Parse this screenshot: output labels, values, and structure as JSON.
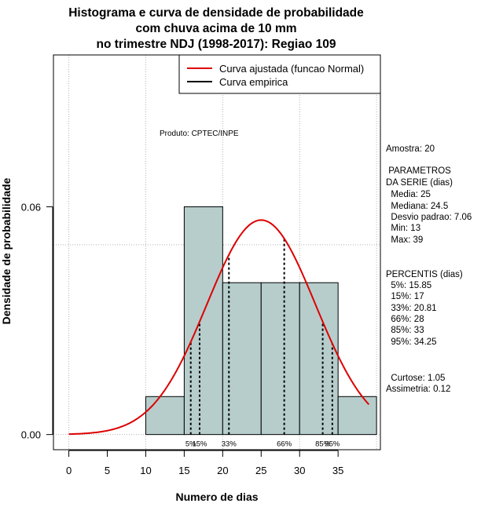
{
  "chart_data": {
    "type": "histogram",
    "title": [
      "Histograma e curva de densidade de probabilidade",
      "com chuva acima de 10 mm",
      "no trimestre NDJ (1998-2017): Regiao 109"
    ],
    "xlabel": "Numero de dias",
    "ylabel": "Densidade de probabilidade",
    "xlim": [
      -2,
      40.5
    ],
    "ylim": [
      -0.004,
      0.1
    ],
    "x_ticks": [
      "0",
      "5",
      "10",
      "15",
      "20",
      "25",
      "30",
      "35"
    ],
    "x_tick_values": [
      0,
      5,
      10,
      15,
      20,
      25,
      30,
      35
    ],
    "y_ticks": [
      "0.00",
      "0.06"
    ],
    "y_tick_values": [
      0,
      0.06
    ],
    "grid_x": [
      0,
      10,
      20,
      30,
      40
    ],
    "grid_y": [
      0,
      0.05,
      0.1
    ],
    "bins": [
      {
        "from": 10,
        "to": 15,
        "density": 0.01
      },
      {
        "from": 15,
        "to": 20,
        "density": 0.06
      },
      {
        "from": 20,
        "to": 25,
        "density": 0.04
      },
      {
        "from": 25,
        "to": 30,
        "density": 0.04
      },
      {
        "from": 30,
        "to": 35,
        "density": 0.04
      },
      {
        "from": 35,
        "to": 40,
        "density": 0.01
      }
    ],
    "normal_curve": {
      "name": "Curva ajustada (funcao Normal)",
      "mean": 25,
      "sd": 7.06,
      "x_from": 0,
      "x_to": 39,
      "color": "#dd0000"
    },
    "empirical_curve": {
      "name": "Curva empirica",
      "color": "#000000"
    },
    "percentiles": [
      {
        "label": "5%",
        "x": 15.85
      },
      {
        "label": "15%",
        "x": 17
      },
      {
        "label": "33%",
        "x": 20.81
      },
      {
        "label": "66%",
        "x": 28
      },
      {
        "label": "85%",
        "x": 33
      },
      {
        "label": "95%",
        "x": 34.25
      }
    ],
    "legend": {
      "placement": "top-right"
    },
    "colors": {
      "bar_fill": "#b6cdcc",
      "bar_stroke": "#000000",
      "grid": "#b4b4b4"
    }
  },
  "product_label": "Produto: CPTEC/INPE",
  "stats": {
    "sample": "Amostra: 20",
    "params_title_1": " PARAMETROS",
    "params_title_2": "DA SERIE (dias)",
    "media": "  Media: 25",
    "mediana": "  Mediana: 24.5",
    "desvio": "  Desvio padrao: 7.06",
    "min": "  Min: 13",
    "max": "  Max: 39",
    "percentis_title": "PERCENTIS (dias)",
    "p5": "  5%: 15.85",
    "p15": "  15%: 17",
    "p33": "  33%: 20.81",
    "p66": "  66%: 28",
    "p85": "  85%: 33",
    "p95": "  95%: 34.25",
    "curtose": "  Curtose: 1.05",
    "assimetria": "Assimetria: 0.12"
  }
}
